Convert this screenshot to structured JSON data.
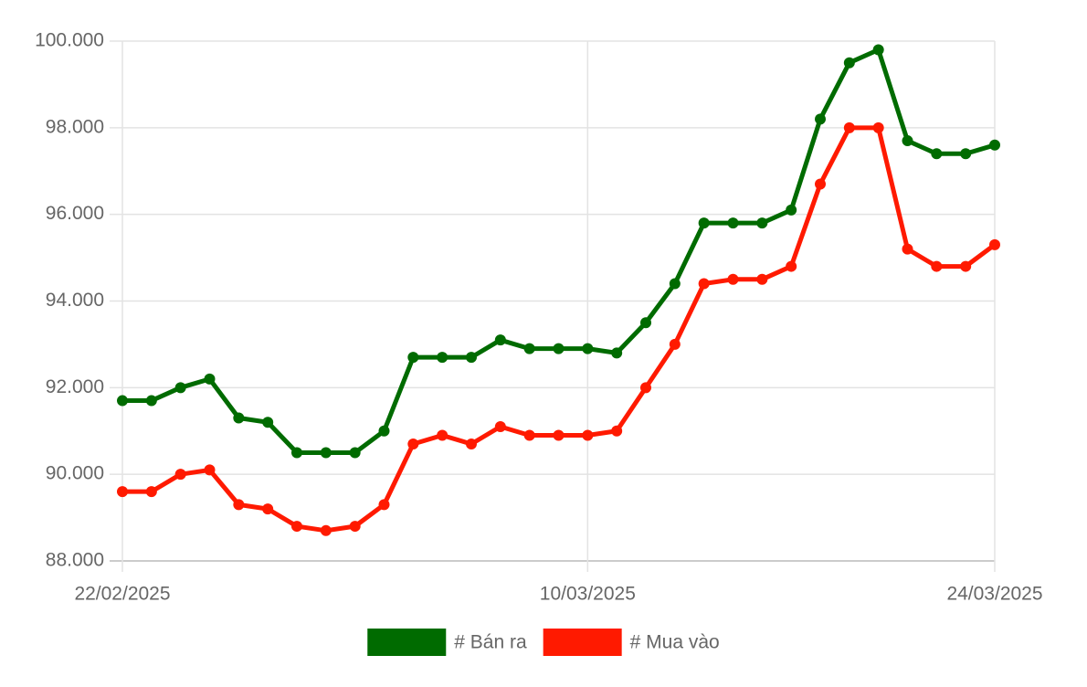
{
  "chart_data": {
    "type": "line",
    "categories": [
      "22/02/2025",
      null,
      null,
      null,
      null,
      null,
      null,
      null,
      null,
      null,
      null,
      null,
      null,
      null,
      null,
      null,
      "10/03/2025",
      null,
      null,
      null,
      null,
      null,
      null,
      null,
      null,
      null,
      null,
      null,
      null,
      null,
      "24/03/2025"
    ],
    "series": [
      {
        "name": "# Bán ra",
        "color": "#006b00",
        "values": [
          91700,
          91700,
          92000,
          92200,
          91300,
          91200,
          90500,
          90500,
          90500,
          91000,
          92700,
          92700,
          92700,
          93100,
          92900,
          92900,
          92900,
          92800,
          93500,
          94400,
          95800,
          95800,
          95800,
          96100,
          98200,
          99500,
          99800,
          97700,
          97400,
          97400,
          97600
        ]
      },
      {
        "name": "# Mua vào",
        "color": "#ff1a00",
        "values": [
          89600,
          89600,
          90000,
          90100,
          89300,
          89200,
          88800,
          88700,
          88800,
          89300,
          90700,
          90900,
          90700,
          91100,
          90900,
          90900,
          90900,
          91000,
          92000,
          93000,
          94400,
          94500,
          94500,
          94800,
          96700,
          98000,
          98000,
          95200,
          94800,
          94800,
          95300
        ]
      }
    ],
    "ylim": [
      88000,
      100000
    ],
    "yticks": [
      {
        "value": 88000,
        "label": "88.000"
      },
      {
        "value": 90000,
        "label": "90.000"
      },
      {
        "value": 92000,
        "label": "92.000"
      },
      {
        "value": 94000,
        "label": "94.000"
      },
      {
        "value": 96000,
        "label": "96.000"
      },
      {
        "value": 98000,
        "label": "98.000"
      },
      {
        "value": 100000,
        "label": "100.000"
      }
    ],
    "grid": true,
    "legend": "bottom"
  }
}
